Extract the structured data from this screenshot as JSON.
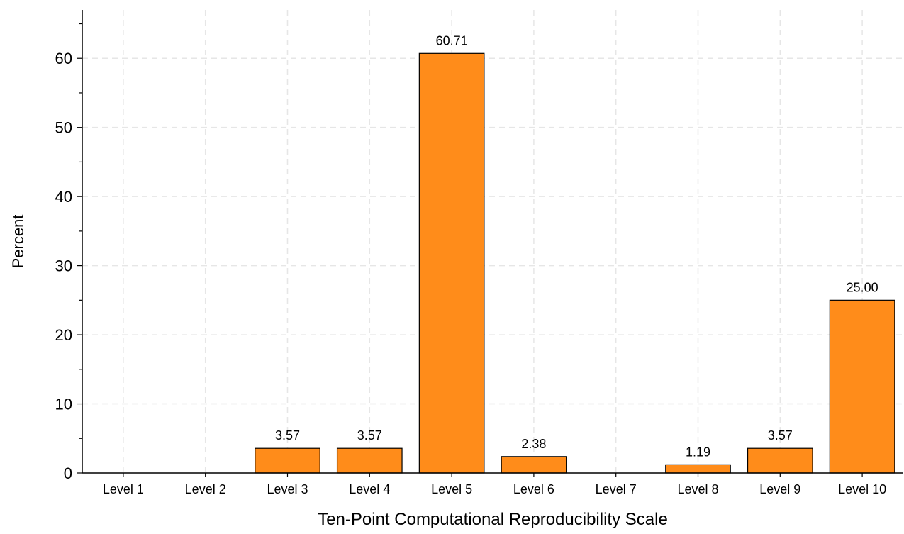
{
  "chart_data": {
    "type": "bar",
    "title": "",
    "xlabel": "Ten-Point Computational Reproducibility Scale",
    "ylabel": "Percent",
    "categories": [
      "Level 1",
      "Level 2",
      "Level 3",
      "Level 4",
      "Level 5",
      "Level 6",
      "Level 7",
      "Level 8",
      "Level 9",
      "Level 10"
    ],
    "values": [
      0,
      0,
      3.57,
      3.57,
      60.71,
      2.38,
      0,
      1.19,
      3.57,
      25.0
    ],
    "data_labels": [
      "",
      "",
      "3.57",
      "3.57",
      "60.71",
      "2.38",
      "",
      "1.19",
      "3.57",
      "25.00"
    ],
    "ylim": [
      0,
      67
    ],
    "yticks": [
      0,
      10,
      20,
      30,
      40,
      50,
      60
    ],
    "y_minor_step": 5,
    "grid": true,
    "legend": "none",
    "bar_color": "#FF8C1A",
    "bar_edge_color": "#000000",
    "grid_color": "#e6e6e6"
  }
}
